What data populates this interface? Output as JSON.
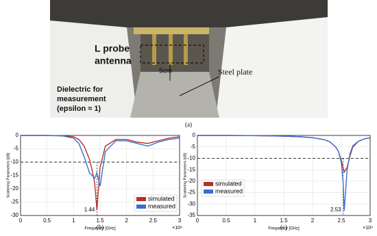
{
  "figure_a": {
    "labels": {
      "probe": [
        "L probe",
        "antenna"
      ],
      "distance": "5cm",
      "plate": "Steel plate",
      "dielectric": [
        "Dielectric for",
        "measurement",
        "(epsilon ≈ 1)"
      ]
    },
    "caption": "(a)"
  },
  "chart_data": [
    {
      "type": "line",
      "caption": "(b)",
      "xlabel": "Frequency [GHz]",
      "x_multiplier": "×10⁹",
      "ylabel": "Scattering Parameters [dB]",
      "x": [
        0,
        0.5,
        0.8,
        1.0,
        1.1,
        1.2,
        1.3,
        1.35,
        1.4,
        1.44,
        1.5,
        1.6,
        1.8,
        2.0,
        2.2,
        2.4,
        2.6,
        2.8,
        3.0
      ],
      "series": [
        {
          "name": "simulated",
          "color": "#b5312a",
          "values": [
            0,
            0,
            -0.1,
            -0.5,
            -1.5,
            -4,
            -9,
            -13,
            -18,
            -28,
            -12,
            -4,
            -1.5,
            -1.5,
            -2.5,
            -3,
            -2,
            -1,
            -0.5
          ]
        },
        {
          "name": "measured",
          "color": "#3a6fd0",
          "values": [
            0,
            0,
            -0.2,
            -1,
            -3,
            -8,
            -14,
            -15,
            -16,
            -14,
            -19,
            -6,
            -2,
            -2,
            -3,
            -4,
            -2.5,
            -1.5,
            -1
          ]
        }
      ],
      "xlim": [
        0,
        3
      ],
      "xticks": [
        0,
        0.5,
        1,
        1.5,
        2,
        2.5,
        3
      ],
      "ylim": [
        -30,
        0
      ],
      "yticks": [
        0,
        -5,
        -10,
        -15,
        -20,
        -25,
        -30
      ],
      "reference_y": -10,
      "annotation_x": 1.44,
      "grid": true,
      "legend": "lower right"
    },
    {
      "type": "line",
      "caption": "(c)",
      "xlabel": "Frequency [GHz]",
      "x_multiplier": "×10⁹",
      "ylabel": "Scattering Parameters [dB]",
      "x": [
        0,
        0.5,
        1.0,
        1.5,
        1.8,
        2.0,
        2.2,
        2.3,
        2.4,
        2.45,
        2.5,
        2.53,
        2.55,
        2.6,
        2.65,
        2.7,
        2.8,
        2.9,
        3.0
      ],
      "series": [
        {
          "name": "simulated",
          "color": "#b5312a",
          "values": [
            0,
            0,
            -0.1,
            -0.3,
            -0.6,
            -1,
            -1.8,
            -2.8,
            -5,
            -7,
            -11,
            -14,
            -16,
            -14,
            -9,
            -5,
            -2.5,
            -1.5,
            -1
          ]
        },
        {
          "name": "measured",
          "color": "#3a6fd0",
          "values": [
            0,
            0,
            -0.1,
            -0.3,
            -0.6,
            -1,
            -1.8,
            -2.8,
            -5,
            -7,
            -12,
            -20,
            -33,
            -15,
            -8,
            -4.5,
            -2.5,
            -1.5,
            -1
          ]
        }
      ],
      "xlim": [
        0,
        3
      ],
      "xticks": [
        0,
        0.5,
        1,
        1.5,
        2,
        2.5,
        3
      ],
      "ylim": [
        -35,
        0
      ],
      "yticks": [
        0,
        -5,
        -10,
        -15,
        -20,
        -25,
        -30,
        -35
      ],
      "reference_y": -10,
      "annotation_x": 2.53,
      "grid": true,
      "legend": "lower left"
    }
  ]
}
